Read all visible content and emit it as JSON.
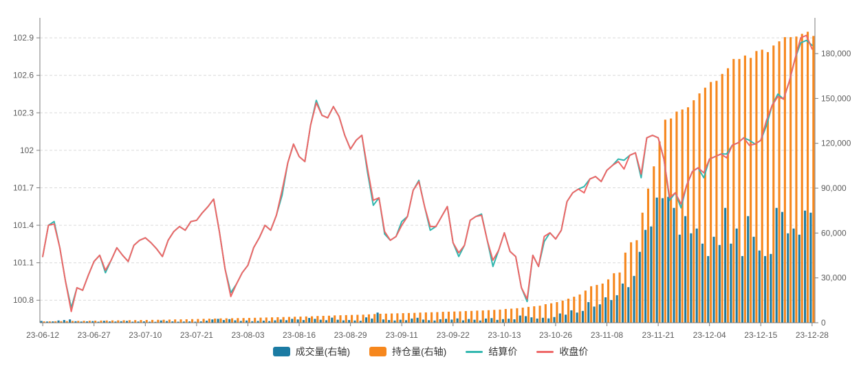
{
  "chart_data": {
    "type": "combo",
    "title": "",
    "legend_position": "bottom",
    "grid": "dashed-horizontal",
    "background": "#ffffff",
    "axis_color": "#7a7a7a",
    "label_color": "#5c5c5c",
    "gridline_color": "#d9d9d9",
    "x": {
      "tick_interval": 9,
      "dates": [
        "23-06-12",
        "23-06-13",
        "23-06-14",
        "23-06-15",
        "23-06-16",
        "23-06-19",
        "23-06-20",
        "23-06-21",
        "23-06-26",
        "23-06-27",
        "23-06-28",
        "23-06-29",
        "23-06-30",
        "23-07-03",
        "23-07-04",
        "23-07-05",
        "23-07-06",
        "23-07-07",
        "23-07-10",
        "23-07-11",
        "23-07-12",
        "23-07-13",
        "23-07-14",
        "23-07-17",
        "23-07-18",
        "23-07-19",
        "23-07-20",
        "23-07-21",
        "23-07-24",
        "23-07-25",
        "23-07-26",
        "23-07-27",
        "23-07-28",
        "23-07-31",
        "23-08-01",
        "23-08-02",
        "23-08-03",
        "23-08-04",
        "23-08-07",
        "23-08-08",
        "23-08-09",
        "23-08-10",
        "23-08-11",
        "23-08-14",
        "23-08-15",
        "23-08-16",
        "23-08-17",
        "23-08-18",
        "23-08-21",
        "23-08-22",
        "23-08-23",
        "23-08-24",
        "23-08-25",
        "23-08-28",
        "23-08-29",
        "23-08-30",
        "23-08-31",
        "23-09-01",
        "23-09-04",
        "23-09-05",
        "23-09-06",
        "23-09-07",
        "23-09-08",
        "23-09-11",
        "23-09-12",
        "23-09-13",
        "23-09-14",
        "23-09-15",
        "23-09-18",
        "23-09-19",
        "23-09-20",
        "23-09-21",
        "23-09-22",
        "23-09-25",
        "23-09-26",
        "23-09-27",
        "23-09-28",
        "23-10-09",
        "23-10-10",
        "23-10-11",
        "23-10-12",
        "23-10-13",
        "23-10-16",
        "23-10-17",
        "23-10-18",
        "23-10-19",
        "23-10-20",
        "23-10-23",
        "23-10-24",
        "23-10-25",
        "23-10-26",
        "23-10-27",
        "23-10-30",
        "23-10-31",
        "23-11-01",
        "23-11-02",
        "23-11-03",
        "23-11-06",
        "23-11-07",
        "23-11-08",
        "23-11-09",
        "23-11-10",
        "23-11-13",
        "23-11-14",
        "23-11-15",
        "23-11-16",
        "23-11-17",
        "23-11-20",
        "23-11-21",
        "23-11-22",
        "23-11-23",
        "23-11-24",
        "23-11-27",
        "23-11-28",
        "23-11-29",
        "23-11-30",
        "23-12-01",
        "23-12-04",
        "23-12-05",
        "23-12-06",
        "23-12-07",
        "23-12-08",
        "23-12-11",
        "23-12-12",
        "23-12-13",
        "23-12-14",
        "23-12-15",
        "23-12-18",
        "23-12-19",
        "23-12-20",
        "23-12-21",
        "23-12-22",
        "23-12-25",
        "23-12-26",
        "23-12-27",
        "23-12-28"
      ]
    },
    "y_left": {
      "tick_labels": [
        "100.8",
        "101.1",
        "101.4",
        "101.7",
        "102",
        "102.3",
        "102.6",
        "102.9"
      ],
      "tick_values": [
        100.8,
        101.1,
        101.4,
        101.7,
        102.0,
        102.3,
        102.6,
        102.9
      ],
      "min": 100.62,
      "max": 103.06
    },
    "y_right": {
      "tick_values": [
        0,
        30000,
        60000,
        90000,
        120000,
        150000,
        180000
      ],
      "tick_labels": [
        "0",
        "30,000",
        "60,000",
        "90,000",
        "120,000",
        "150,000",
        "180,000"
      ],
      "plot_max": 203900
    },
    "series": [
      {
        "name": "成交量(右轴)",
        "type": "bar",
        "axis": "right",
        "color": "#1b7ba3",
        "values": [
          1200,
          800,
          900,
          1500,
          1800,
          2200,
          1000,
          800,
          900,
          1100,
          700,
          1300,
          900,
          800,
          1000,
          1200,
          700,
          800,
          900,
          700,
          600,
          1500,
          1100,
          900,
          700,
          800,
          900,
          700,
          900,
          1400,
          2200,
          2600,
          1800,
          2400,
          1600,
          1200,
          1500,
          1000,
          1200,
          1400,
          1100,
          1600,
          2100,
          1700,
          2600,
          2200,
          1800,
          3200,
          2600,
          2000,
          1700,
          3400,
          2000,
          1600,
          1800,
          1500,
          1300,
          3600,
          2800,
          6800,
          2200,
          1800,
          1500,
          2000,
          1700,
          2800,
          3300,
          2100,
          1700,
          1500,
          2300,
          2600,
          2100,
          2900,
          1600,
          2500,
          2000,
          1500,
          2800,
          3100,
          1900,
          2400,
          2700,
          2300,
          4800,
          4400,
          3600,
          2800,
          3300,
          2900,
          3800,
          6200,
          5400,
          8300,
          6800,
          7900,
          13800,
          10800,
          12300,
          17000,
          15200,
          18400,
          26200,
          23800,
          31300,
          47400,
          62100,
          64400,
          83700,
          83300,
          84200,
          76800,
          58900,
          71300,
          59800,
          63000,
          52900,
          44600,
          57500,
          52000,
          76800,
          52900,
          63000,
          44600,
          71300,
          57500,
          48300,
          44600,
          46000,
          76800,
          74100,
          59800,
          63000,
          58900,
          75000,
          73600
        ]
      },
      {
        "name": "持仓量(右轴)",
        "type": "bar",
        "axis": "right",
        "color": "#f6871d",
        "values": [
          900,
          950,
          1000,
          1050,
          1100,
          1200,
          1250,
          1300,
          1350,
          1400,
          1450,
          1500,
          1550,
          1600,
          1650,
          1700,
          1750,
          1800,
          1850,
          1900,
          1950,
          2000,
          2100,
          2200,
          2250,
          2300,
          2400,
          2500,
          2600,
          2700,
          2800,
          2900,
          2950,
          3000,
          3100,
          3150,
          3200,
          3300,
          3400,
          3500,
          3600,
          3700,
          3800,
          3900,
          4000,
          4100,
          4200,
          4300,
          4500,
          4600,
          4700,
          4900,
          5000,
          5100,
          5200,
          5300,
          5400,
          5600,
          5800,
          6000,
          6100,
          6200,
          6300,
          6400,
          6500,
          6600,
          6800,
          6900,
          7000,
          7100,
          7300,
          7400,
          7500,
          7600,
          7800,
          7900,
          8100,
          8200,
          8400,
          8600,
          8800,
          9200,
          9400,
          9700,
          10100,
          10600,
          11000,
          11400,
          12400,
          13000,
          13800,
          14800,
          16100,
          17400,
          18900,
          21500,
          24400,
          25300,
          26200,
          29000,
          33100,
          33600,
          46900,
          53800,
          55200,
          73600,
          89700,
          104600,
          121200,
          135800,
          136600,
          141200,
          142600,
          144100,
          148800,
          153400,
          157200,
          161000,
          161800,
          166400,
          170200,
          176400,
          176400,
          178700,
          177100,
          181700,
          182600,
          181000,
          185400,
          188200,
          191000,
          191000,
          191400,
          193200,
          194600,
          191800
        ]
      },
      {
        "name": "结算价",
        "type": "line",
        "axis": "left",
        "color": "#30b6ae",
        "values": [
          101.15,
          101.4,
          101.43,
          101.22,
          100.95,
          100.74,
          100.9,
          100.88,
          101.0,
          101.11,
          101.16,
          101.02,
          101.12,
          101.22,
          101.16,
          101.11,
          101.24,
          101.28,
          101.3,
          101.26,
          101.21,
          101.15,
          101.28,
          101.35,
          101.39,
          101.36,
          101.43,
          101.44,
          101.5,
          101.55,
          101.61,
          101.35,
          101.05,
          100.86,
          100.93,
          101.02,
          101.08,
          101.22,
          101.3,
          101.4,
          101.36,
          101.48,
          101.64,
          101.9,
          102.05,
          101.95,
          101.91,
          102.2,
          102.4,
          102.28,
          102.26,
          102.35,
          102.27,
          102.12,
          102.01,
          102.08,
          102.12,
          101.82,
          101.56,
          101.62,
          101.33,
          101.28,
          101.31,
          101.43,
          101.47,
          101.68,
          101.76,
          101.55,
          101.36,
          101.39,
          101.47,
          101.55,
          101.26,
          101.15,
          101.24,
          101.44,
          101.47,
          101.49,
          101.28,
          101.07,
          101.2,
          101.34,
          101.19,
          101.15,
          100.9,
          100.79,
          101.16,
          101.07,
          101.27,
          101.34,
          101.29,
          101.36,
          101.59,
          101.66,
          101.69,
          101.71,
          101.77,
          101.79,
          101.75,
          101.84,
          101.88,
          101.93,
          101.92,
          101.96,
          101.98,
          101.78,
          102.1,
          102.12,
          102.1,
          101.93,
          101.6,
          101.66,
          101.54,
          101.72,
          101.83,
          101.86,
          101.78,
          101.93,
          101.95,
          101.97,
          101.97,
          102.04,
          102.06,
          102.1,
          102.08,
          102.05,
          102.08,
          102.2,
          102.36,
          102.45,
          102.41,
          102.55,
          102.73,
          102.86,
          102.88,
          102.84
        ]
      },
      {
        "name": "收盘价",
        "type": "line",
        "axis": "left",
        "color": "#ee6666",
        "values": [
          101.15,
          101.4,
          101.41,
          101.22,
          100.95,
          100.71,
          100.9,
          100.88,
          101.0,
          101.11,
          101.16,
          101.04,
          101.12,
          101.22,
          101.16,
          101.11,
          101.24,
          101.28,
          101.3,
          101.26,
          101.21,
          101.15,
          101.28,
          101.35,
          101.39,
          101.36,
          101.43,
          101.44,
          101.5,
          101.55,
          101.61,
          101.35,
          101.05,
          100.83,
          100.93,
          101.02,
          101.08,
          101.22,
          101.3,
          101.4,
          101.36,
          101.48,
          101.68,
          101.9,
          102.05,
          101.95,
          101.91,
          102.2,
          102.38,
          102.28,
          102.26,
          102.35,
          102.27,
          102.12,
          102.01,
          102.08,
          102.12,
          101.85,
          101.6,
          101.62,
          101.35,
          101.28,
          101.31,
          101.4,
          101.47,
          101.68,
          101.75,
          101.55,
          101.39,
          101.39,
          101.47,
          101.55,
          101.26,
          101.18,
          101.24,
          101.44,
          101.47,
          101.48,
          101.28,
          101.12,
          101.2,
          101.34,
          101.19,
          101.15,
          100.9,
          100.81,
          101.16,
          101.07,
          101.31,
          101.34,
          101.29,
          101.36,
          101.59,
          101.66,
          101.69,
          101.66,
          101.77,
          101.79,
          101.75,
          101.84,
          101.88,
          101.91,
          101.85,
          101.96,
          101.98,
          101.81,
          102.1,
          102.12,
          102.1,
          101.93,
          101.62,
          101.66,
          101.57,
          101.72,
          101.83,
          101.86,
          101.82,
          101.93,
          101.95,
          101.97,
          101.94,
          102.04,
          102.06,
          102.1,
          102.04,
          102.05,
          102.08,
          102.24,
          102.36,
          102.43,
          102.41,
          102.55,
          102.73,
          102.9,
          102.92,
          102.81
        ]
      }
    ]
  }
}
